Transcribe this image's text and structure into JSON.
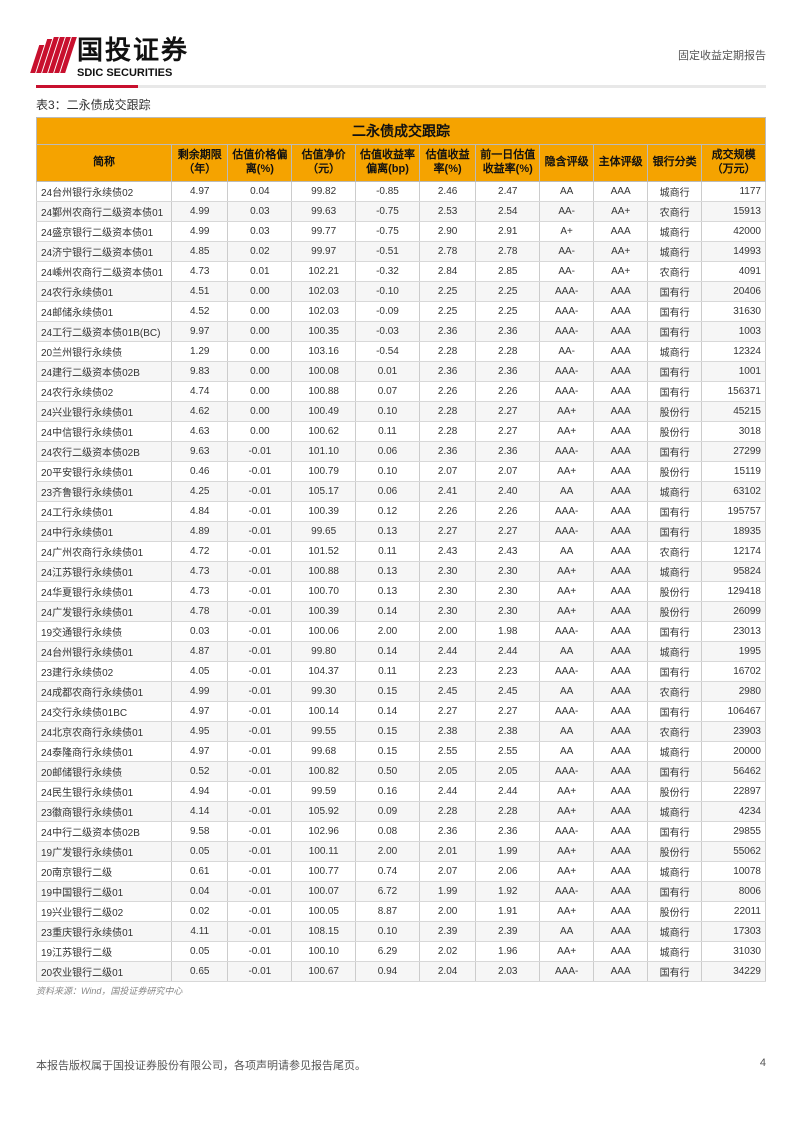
{
  "header": {
    "logo_cn": "国投证券",
    "logo_en": "SDIC SECURITIES",
    "doc_type": "固定收益定期报告"
  },
  "table": {
    "caption": "表3：二永债成交跟踪",
    "title": "二永债成交跟踪",
    "columns": [
      "简称",
      "剩余期限（年）",
      "估值价格偏离(%)",
      "估值净价（元）",
      "估值收益率偏离(bp)",
      "估值收益率(%)",
      "前一日估值收益率(%)",
      "隐含评级",
      "主体评级",
      "银行分类",
      "成交规模（万元）"
    ],
    "rows": [
      [
        "24台州银行永续债02",
        "4.97",
        "0.04",
        "99.82",
        "-0.85",
        "2.46",
        "2.47",
        "AA",
        "AAA",
        "城商行",
        "1177"
      ],
      [
        "24鄞州农商行二级资本债01",
        "4.99",
        "0.03",
        "99.63",
        "-0.75",
        "2.53",
        "2.54",
        "AA-",
        "AA+",
        "农商行",
        "15913"
      ],
      [
        "24盛京银行二级资本债01",
        "4.99",
        "0.03",
        "99.77",
        "-0.75",
        "2.90",
        "2.91",
        "A+",
        "AAA",
        "城商行",
        "42000"
      ],
      [
        "24济宁银行二级资本债01",
        "4.85",
        "0.02",
        "99.97",
        "-0.51",
        "2.78",
        "2.78",
        "AA-",
        "AA+",
        "城商行",
        "14993"
      ],
      [
        "24嵊州农商行二级资本债01",
        "4.73",
        "0.01",
        "102.21",
        "-0.32",
        "2.84",
        "2.85",
        "AA-",
        "AA+",
        "农商行",
        "4091"
      ],
      [
        "24农行永续债01",
        "4.51",
        "0.00",
        "102.03",
        "-0.10",
        "2.25",
        "2.25",
        "AAA-",
        "AAA",
        "国有行",
        "20406"
      ],
      [
        "24邮储永续债01",
        "4.52",
        "0.00",
        "102.03",
        "-0.09",
        "2.25",
        "2.25",
        "AAA-",
        "AAA",
        "国有行",
        "31630"
      ],
      [
        "24工行二级资本债01B(BC)",
        "9.97",
        "0.00",
        "100.35",
        "-0.03",
        "2.36",
        "2.36",
        "AAA-",
        "AAA",
        "国有行",
        "1003"
      ],
      [
        "20兰州银行永续债",
        "1.29",
        "0.00",
        "103.16",
        "-0.54",
        "2.28",
        "2.28",
        "AA-",
        "AAA",
        "城商行",
        "12324"
      ],
      [
        "24建行二级资本债02B",
        "9.83",
        "0.00",
        "100.08",
        "0.01",
        "2.36",
        "2.36",
        "AAA-",
        "AAA",
        "国有行",
        "1001"
      ],
      [
        "24农行永续债02",
        "4.74",
        "0.00",
        "100.88",
        "0.07",
        "2.26",
        "2.26",
        "AAA-",
        "AAA",
        "国有行",
        "156371"
      ],
      [
        "24兴业银行永续债01",
        "4.62",
        "0.00",
        "100.49",
        "0.10",
        "2.28",
        "2.27",
        "AA+",
        "AAA",
        "股份行",
        "45215"
      ],
      [
        "24中信银行永续债01",
        "4.63",
        "0.00",
        "100.62",
        "0.11",
        "2.28",
        "2.27",
        "AA+",
        "AAA",
        "股份行",
        "3018"
      ],
      [
        "24农行二级资本债02B",
        "9.63",
        "-0.01",
        "101.10",
        "0.06",
        "2.36",
        "2.36",
        "AAA-",
        "AAA",
        "国有行",
        "27299"
      ],
      [
        "20平安银行永续债01",
        "0.46",
        "-0.01",
        "100.79",
        "0.10",
        "2.07",
        "2.07",
        "AA+",
        "AAA",
        "股份行",
        "15119"
      ],
      [
        "23齐鲁银行永续债01",
        "4.25",
        "-0.01",
        "105.17",
        "0.06",
        "2.41",
        "2.40",
        "AA",
        "AAA",
        "城商行",
        "63102"
      ],
      [
        "24工行永续债01",
        "4.84",
        "-0.01",
        "100.39",
        "0.12",
        "2.26",
        "2.26",
        "AAA-",
        "AAA",
        "国有行",
        "195757"
      ],
      [
        "24中行永续债01",
        "4.89",
        "-0.01",
        "99.65",
        "0.13",
        "2.27",
        "2.27",
        "AAA-",
        "AAA",
        "国有行",
        "18935"
      ],
      [
        "24广州农商行永续债01",
        "4.72",
        "-0.01",
        "101.52",
        "0.11",
        "2.43",
        "2.43",
        "AA",
        "AAA",
        "农商行",
        "12174"
      ],
      [
        "24江苏银行永续债01",
        "4.73",
        "-0.01",
        "100.88",
        "0.13",
        "2.30",
        "2.30",
        "AA+",
        "AAA",
        "城商行",
        "95824"
      ],
      [
        "24华夏银行永续债01",
        "4.73",
        "-0.01",
        "100.70",
        "0.13",
        "2.30",
        "2.30",
        "AA+",
        "AAA",
        "股份行",
        "129418"
      ],
      [
        "24广发银行永续债01",
        "4.78",
        "-0.01",
        "100.39",
        "0.14",
        "2.30",
        "2.30",
        "AA+",
        "AAA",
        "股份行",
        "26099"
      ],
      [
        "19交通银行永续债",
        "0.03",
        "-0.01",
        "100.06",
        "2.00",
        "2.00",
        "1.98",
        "AAA-",
        "AAA",
        "国有行",
        "23013"
      ],
      [
        "24台州银行永续债01",
        "4.87",
        "-0.01",
        "99.80",
        "0.14",
        "2.44",
        "2.44",
        "AA",
        "AAA",
        "城商行",
        "1995"
      ],
      [
        "23建行永续债02",
        "4.05",
        "-0.01",
        "104.37",
        "0.11",
        "2.23",
        "2.23",
        "AAA-",
        "AAA",
        "国有行",
        "16702"
      ],
      [
        "24成都农商行永续债01",
        "4.99",
        "-0.01",
        "99.30",
        "0.15",
        "2.45",
        "2.45",
        "AA",
        "AAA",
        "农商行",
        "2980"
      ],
      [
        "24交行永续债01BC",
        "4.97",
        "-0.01",
        "100.14",
        "0.14",
        "2.27",
        "2.27",
        "AAA-",
        "AAA",
        "国有行",
        "106467"
      ],
      [
        "24北京农商行永续债01",
        "4.95",
        "-0.01",
        "99.55",
        "0.15",
        "2.38",
        "2.38",
        "AA",
        "AAA",
        "农商行",
        "23903"
      ],
      [
        "24泰隆商行永续债01",
        "4.97",
        "-0.01",
        "99.68",
        "0.15",
        "2.55",
        "2.55",
        "AA",
        "AAA",
        "城商行",
        "20000"
      ],
      [
        "20邮储银行永续债",
        "0.52",
        "-0.01",
        "100.82",
        "0.50",
        "2.05",
        "2.05",
        "AAA-",
        "AAA",
        "国有行",
        "56462"
      ],
      [
        "24民生银行永续债01",
        "4.94",
        "-0.01",
        "99.59",
        "0.16",
        "2.44",
        "2.44",
        "AA+",
        "AAA",
        "股份行",
        "22897"
      ],
      [
        "23徽商银行永续债01",
        "4.14",
        "-0.01",
        "105.92",
        "0.09",
        "2.28",
        "2.28",
        "AA+",
        "AAA",
        "城商行",
        "4234"
      ],
      [
        "24中行二级资本债02B",
        "9.58",
        "-0.01",
        "102.96",
        "0.08",
        "2.36",
        "2.36",
        "AAA-",
        "AAA",
        "国有行",
        "29855"
      ],
      [
        "19广发银行永续债01",
        "0.05",
        "-0.01",
        "100.11",
        "2.00",
        "2.01",
        "1.99",
        "AA+",
        "AAA",
        "股份行",
        "55062"
      ],
      [
        "20南京银行二级",
        "0.61",
        "-0.01",
        "100.77",
        "0.74",
        "2.07",
        "2.06",
        "AA+",
        "AAA",
        "城商行",
        "10078"
      ],
      [
        "19中国银行二级01",
        "0.04",
        "-0.01",
        "100.07",
        "6.72",
        "1.99",
        "1.92",
        "AAA-",
        "AAA",
        "国有行",
        "8006"
      ],
      [
        "19兴业银行二级02",
        "0.02",
        "-0.01",
        "100.05",
        "8.87",
        "2.00",
        "1.91",
        "AA+",
        "AAA",
        "股份行",
        "22011"
      ],
      [
        "23重庆银行永续债01",
        "4.11",
        "-0.01",
        "108.15",
        "0.10",
        "2.39",
        "2.39",
        "AA",
        "AAA",
        "城商行",
        "17303"
      ],
      [
        "19江苏银行二级",
        "0.05",
        "-0.01",
        "100.10",
        "6.29",
        "2.02",
        "1.96",
        "AA+",
        "AAA",
        "城商行",
        "31030"
      ],
      [
        "20农业银行二级01",
        "0.65",
        "-0.01",
        "100.67",
        "0.94",
        "2.04",
        "2.03",
        "AAA-",
        "AAA",
        "国有行",
        "34229"
      ]
    ],
    "source": "资料来源：Wind，国投证券研究中心",
    "styling": {
      "header_bg": "#f5a300",
      "header_fg": "#111111",
      "row_even_bg": "#f6f6f6",
      "row_odd_bg": "#ffffff",
      "border_color": "#cccccc",
      "title_fontsize_pt": 14,
      "header_fontsize_pt": 11,
      "cell_fontsize_pt": 10,
      "column_align": [
        "left",
        "center",
        "center",
        "center",
        "center",
        "center",
        "center",
        "center",
        "center",
        "center",
        "right"
      ]
    }
  },
  "footer": {
    "text": "本报告版权属于国投证券股份有限公司，各项声明请参见报告尾页。",
    "page": "4"
  }
}
